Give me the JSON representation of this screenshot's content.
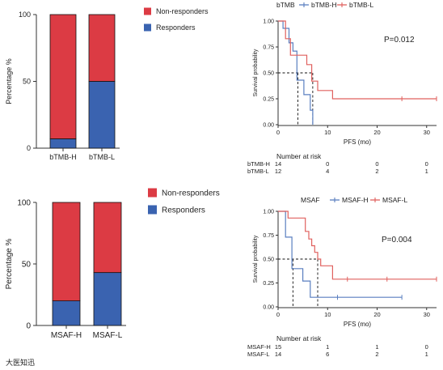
{
  "colors": {
    "responders": "#3a63b0",
    "non_responders": "#dc3b44",
    "high": "#5a7fc0",
    "low": "#e0605e",
    "axis": "#333333"
  },
  "watermark_text": "大医知迅",
  "chart_data": [
    {
      "id": "bar-btmb",
      "type": "bar",
      "stacked": true,
      "categories": [
        "bTMB-H",
        "bTMB-L"
      ],
      "series": [
        {
          "name": "Non-responders",
          "values": [
            93,
            50
          ]
        },
        {
          "name": "Responders",
          "values": [
            7,
            50
          ]
        }
      ],
      "ylabel": "Percentage %",
      "ylim": [
        0,
        100
      ],
      "yticks": [
        "0",
        "50",
        "100"
      ],
      "legend": "top-right"
    },
    {
      "id": "km-btmb",
      "type": "line",
      "step": true,
      "legend_title": "bTMB",
      "legend_items": [
        "bTMB-H",
        "bTMB-L"
      ],
      "p_value": "P=0.012",
      "xlabel": "PFS (mo)",
      "ylabel": "Survival probability",
      "xlim": [
        0,
        32
      ],
      "ylim": [
        0,
        1.0
      ],
      "xticks": [
        "0",
        "10",
        "20",
        "30"
      ],
      "yticks": [
        "0.00",
        "0.25",
        "0.50",
        "0.75",
        "1.00"
      ],
      "median": [
        4.0,
        7.0
      ],
      "series": [
        {
          "name": "bTMB-H",
          "steps": [
            [
              0,
              1.0
            ],
            [
              1.0,
              1.0
            ],
            [
              1.0,
              0.93
            ],
            [
              2.2,
              0.93
            ],
            [
              2.2,
              0.79
            ],
            [
              3.0,
              0.79
            ],
            [
              3.0,
              0.71
            ],
            [
              3.8,
              0.71
            ],
            [
              3.8,
              0.43
            ],
            [
              5.2,
              0.43
            ],
            [
              5.2,
              0.29
            ],
            [
              6.5,
              0.29
            ],
            [
              6.5,
              0.14
            ],
            [
              7.0,
              0.14
            ],
            [
              7.0,
              0.0
            ]
          ],
          "censor": []
        },
        {
          "name": "bTMB-L",
          "steps": [
            [
              0,
              1.0
            ],
            [
              1.5,
              1.0
            ],
            [
              1.5,
              0.83
            ],
            [
              2.5,
              0.83
            ],
            [
              2.5,
              0.67
            ],
            [
              5.8,
              0.67
            ],
            [
              5.8,
              0.58
            ],
            [
              6.8,
              0.58
            ],
            [
              6.8,
              0.42
            ],
            [
              8.0,
              0.42
            ],
            [
              8.0,
              0.33
            ],
            [
              11.0,
              0.33
            ],
            [
              11.0,
              0.25
            ],
            [
              32,
              0.25
            ]
          ],
          "censor": [
            [
              25.0,
              0.25
            ],
            [
              32.0,
              0.25
            ]
          ]
        }
      ],
      "risk_table": {
        "title": "Number at risk",
        "rows": [
          {
            "label": "bTMB-H",
            "values": [
              "14",
              "0",
              "0",
              "0"
            ]
          },
          {
            "label": "bTMB-L",
            "values": [
              "12",
              "4",
              "2",
              "1"
            ]
          }
        ]
      }
    },
    {
      "id": "bar-msaf",
      "type": "bar",
      "stacked": true,
      "categories": [
        "MSAF-H",
        "MSAF-L"
      ],
      "series": [
        {
          "name": "Non-responders",
          "values": [
            80,
            57
          ]
        },
        {
          "name": "Responders",
          "values": [
            20,
            43
          ]
        }
      ],
      "ylabel": "Percentage %",
      "ylim": [
        0,
        100
      ],
      "yticks": [
        "0",
        "50",
        "100"
      ],
      "legend": "top-right"
    },
    {
      "id": "km-msaf",
      "type": "line",
      "step": true,
      "legend_title": "MSAF",
      "legend_items": [
        "MSAF-H",
        "MSAF-L"
      ],
      "p_value": "P=0.004",
      "xlabel": "PFS (mo)",
      "ylabel": "Survival probability",
      "xlim": [
        0,
        32
      ],
      "ylim": [
        0,
        1.0
      ],
      "xticks": [
        "0",
        "10",
        "20",
        "30"
      ],
      "yticks": [
        "0.00",
        "0.25",
        "0.50",
        "0.75",
        "1.00"
      ],
      "median": [
        3.0,
        8.0
      ],
      "series": [
        {
          "name": "MSAF-H",
          "steps": [
            [
              0,
              1.0
            ],
            [
              1.5,
              1.0
            ],
            [
              1.5,
              0.73
            ],
            [
              2.8,
              0.73
            ],
            [
              2.8,
              0.4
            ],
            [
              5.0,
              0.4
            ],
            [
              5.0,
              0.27
            ],
            [
              6.5,
              0.27
            ],
            [
              6.5,
              0.1
            ],
            [
              25.0,
              0.1
            ]
          ],
          "censor": [
            [
              12.0,
              0.1
            ],
            [
              25.0,
              0.1
            ]
          ]
        },
        {
          "name": "MSAF-L",
          "steps": [
            [
              0,
              1.0
            ],
            [
              2.0,
              1.0
            ],
            [
              2.0,
              0.93
            ],
            [
              5.5,
              0.93
            ],
            [
              5.5,
              0.79
            ],
            [
              6.2,
              0.79
            ],
            [
              6.2,
              0.71
            ],
            [
              6.8,
              0.71
            ],
            [
              6.8,
              0.64
            ],
            [
              7.4,
              0.64
            ],
            [
              7.4,
              0.57
            ],
            [
              8.0,
              0.57
            ],
            [
              8.0,
              0.5
            ],
            [
              8.6,
              0.5
            ],
            [
              8.6,
              0.43
            ],
            [
              11.0,
              0.43
            ],
            [
              11.0,
              0.29
            ],
            [
              32,
              0.29
            ]
          ],
          "censor": [
            [
              14.0,
              0.29
            ],
            [
              22.0,
              0.29
            ],
            [
              32.0,
              0.29
            ]
          ]
        }
      ],
      "risk_table": {
        "title": "Number at risk",
        "rows": [
          {
            "label": "MSAF-H",
            "values": [
              "15",
              "1",
              "1",
              "0"
            ]
          },
          {
            "label": "MSAF-L",
            "values": [
              "14",
              "6",
              "2",
              "1"
            ]
          }
        ]
      }
    }
  ]
}
